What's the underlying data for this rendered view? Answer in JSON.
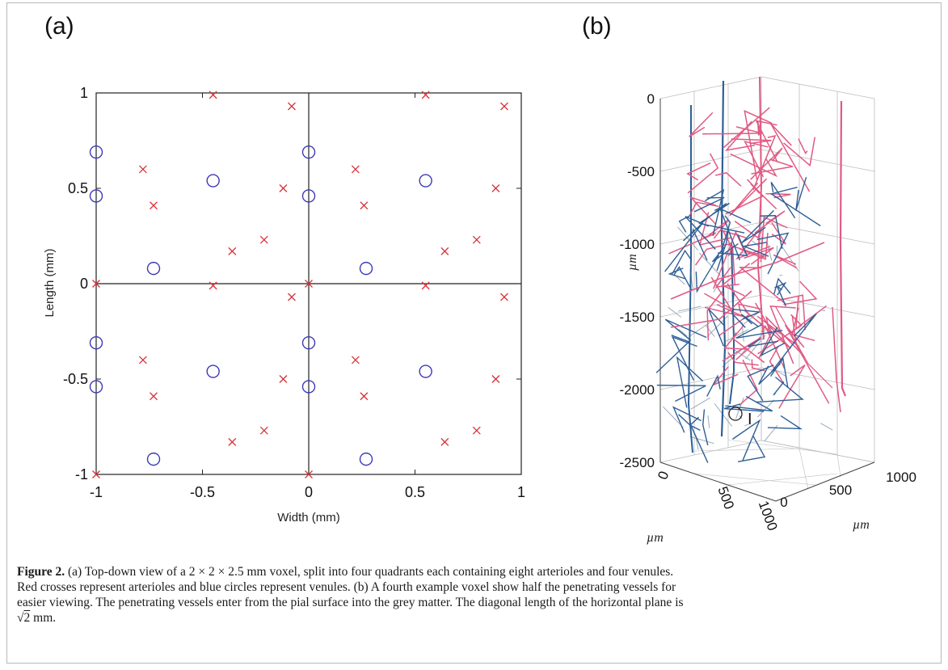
{
  "panel_a_label": "(a)",
  "panel_b_label": "(b)",
  "chart_data": [
    {
      "type": "scatter",
      "panel": "(a)",
      "xlabel": "Width (mm)",
      "ylabel": "Length (mm)",
      "xlim": [
        -1,
        1
      ],
      "ylim": [
        -1,
        1
      ],
      "xticks": [
        "-1",
        "-0.5",
        "0",
        "0.5",
        "1"
      ],
      "yticks": [
        "-1",
        "-0.5",
        "0",
        "0.5",
        "1"
      ],
      "grid": false,
      "colors": {
        "arteriole": "#d9333a",
        "venule": "#3a3ab8"
      },
      "series": [
        {
          "marker": "x",
          "points": [
            [
              -0.45,
              0.99
            ],
            [
              -0.08,
              0.93
            ],
            [
              0.55,
              0.99
            ],
            [
              0.92,
              0.93
            ],
            [
              -0.78,
              0.6
            ],
            [
              -0.73,
              0.41
            ],
            [
              -0.12,
              0.5
            ],
            [
              -0.21,
              0.23
            ],
            [
              -0.36,
              0.17
            ],
            [
              0.22,
              0.6
            ],
            [
              0.26,
              0.41
            ],
            [
              0.88,
              0.5
            ],
            [
              0.79,
              0.23
            ],
            [
              0.64,
              0.17
            ],
            [
              -1.0,
              0.0
            ],
            [
              -0.45,
              -0.01
            ],
            [
              0.0,
              0.0
            ],
            [
              -0.08,
              -0.07
            ],
            [
              0.55,
              -0.01
            ],
            [
              0.92,
              -0.07
            ],
            [
              -0.78,
              -0.4
            ],
            [
              -0.73,
              -0.59
            ],
            [
              -0.12,
              -0.5
            ],
            [
              -0.21,
              -0.77
            ],
            [
              -0.36,
              -0.83
            ],
            [
              0.22,
              -0.4
            ],
            [
              0.26,
              -0.59
            ],
            [
              0.88,
              -0.5
            ],
            [
              0.79,
              -0.77
            ],
            [
              0.64,
              -0.83
            ],
            [
              -1.0,
              -1.0
            ],
            [
              0.0,
              -1.0
            ]
          ]
        },
        {
          "marker": "o",
          "points": [
            [
              -1.0,
              0.69
            ],
            [
              -1.0,
              0.46
            ],
            [
              -0.45,
              0.54
            ],
            [
              -0.73,
              0.08
            ],
            [
              0.0,
              0.69
            ],
            [
              0.0,
              0.46
            ],
            [
              0.55,
              0.54
            ],
            [
              0.27,
              0.08
            ],
            [
              -1.0,
              -0.31
            ],
            [
              -1.0,
              -0.54
            ],
            [
              -0.45,
              -0.46
            ],
            [
              -0.73,
              -0.92
            ],
            [
              0.0,
              -0.31
            ],
            [
              0.0,
              -0.54
            ],
            [
              0.55,
              -0.46
            ],
            [
              0.27,
              -0.92
            ]
          ]
        }
      ]
    },
    {
      "type": "line",
      "panel": "(b)",
      "zlabel": "µm",
      "xlabel": "µm",
      "ylabel": "µm",
      "zticks": [
        "0",
        "-500",
        "-1000",
        "-1500",
        "-2000",
        "-2500"
      ],
      "xticks": [
        "0",
        "500",
        "1000"
      ],
      "yticks": [
        "0",
        "500",
        "1000"
      ],
      "annotation": "I",
      "colors": {
        "arteriole": "#e05a84",
        "venule": "#2f5f96",
        "faint": "#9aaabb"
      }
    }
  ],
  "caption": {
    "label": "Figure 2.",
    "line1_pre": "(a) Top-down view of a",
    "math": "2 × 2 × 2.5",
    "line1_post": "mm voxel, split into four quadrants each containing eight arterioles and four venules.",
    "line2": "Red crosses represent arterioles and blue circles represent venules. (b) A fourth example voxel show half the penetrating vessels for",
    "line3": "easier viewing. The penetrating vessels enter from the pial surface into the grey matter. The diagonal length of the horizontal plane is",
    "sqrt_arg": "2",
    "line4_post": " mm."
  }
}
